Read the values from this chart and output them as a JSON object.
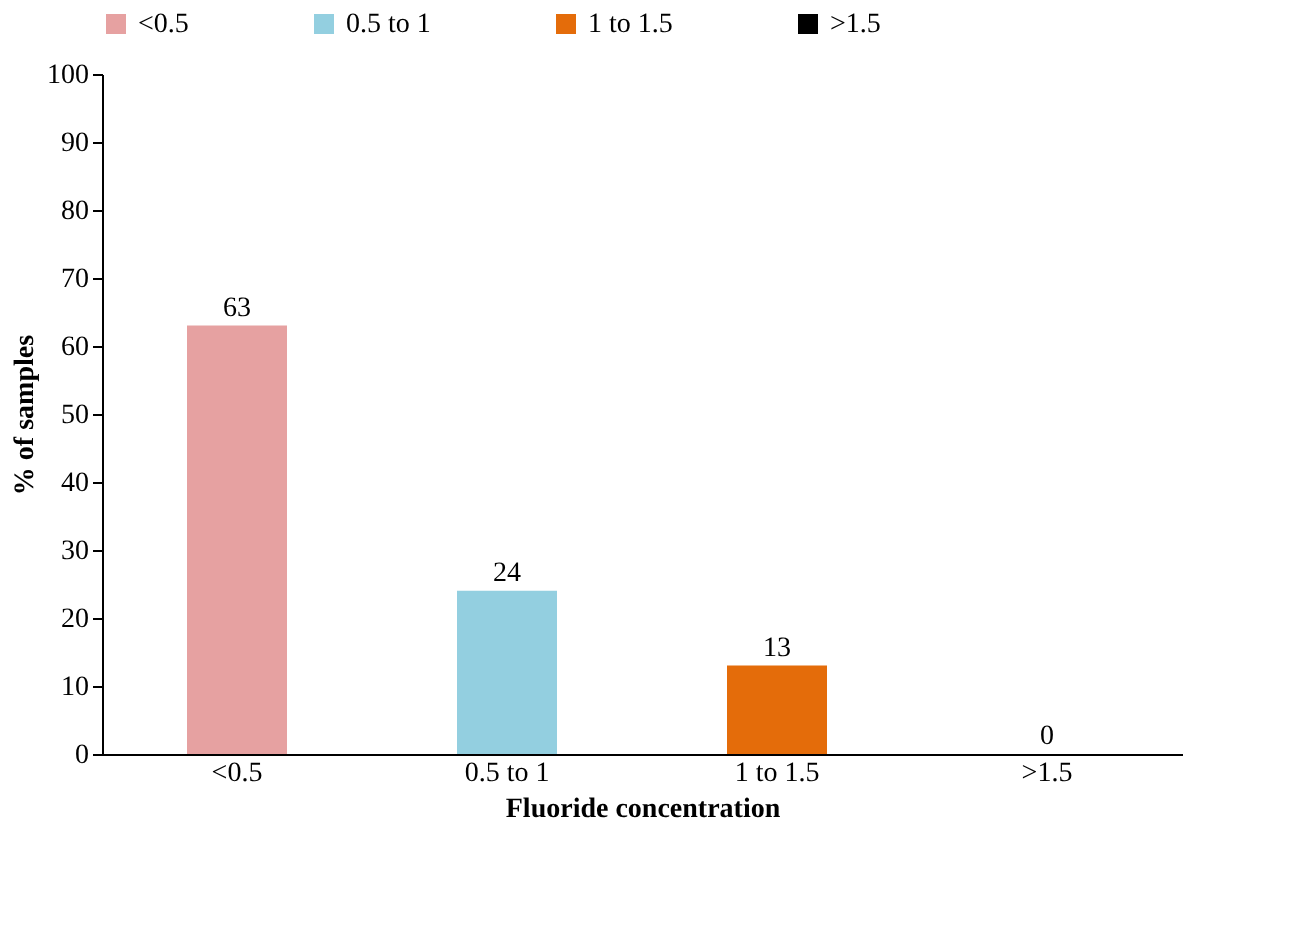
{
  "chart_data": {
    "type": "bar",
    "xlabel": "Fluoride concentration",
    "ylabel": "% of samples",
    "categories": [
      "<0.5",
      "0.5 to 1",
      "1 to 1.5",
      ">1.5"
    ],
    "series": [
      {
        "name": "<0.5",
        "color": "#e6a1a1",
        "values": [
          63,
          null,
          null,
          null
        ]
      },
      {
        "name": "0.5 to 1",
        "color": "#93cfe0",
        "values": [
          null,
          24,
          null,
          null
        ]
      },
      {
        "name": "1 to 1.5",
        "color": "#e46c0a",
        "values": [
          null,
          null,
          13,
          null
        ]
      },
      {
        "name": ">1.5",
        "color": "#000000",
        "values": [
          null,
          null,
          null,
          0
        ]
      }
    ],
    "ylim": [
      0,
      100
    ],
    "yticks": [
      0,
      10,
      20,
      30,
      40,
      50,
      60,
      70,
      80,
      90,
      100
    ],
    "data_labels": true,
    "legend": "top",
    "grid": false
  }
}
